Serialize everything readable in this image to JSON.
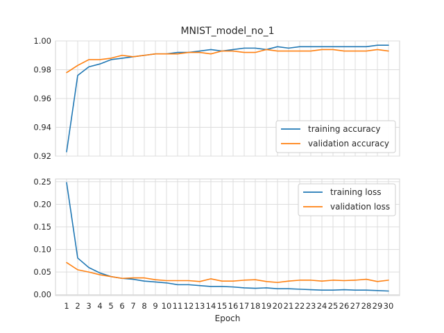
{
  "chart_data": [
    {
      "type": "line",
      "title": "MNIST_model_no_1",
      "xlabel": "",
      "ylabel": "",
      "x": [
        1,
        2,
        3,
        4,
        5,
        6,
        7,
        8,
        9,
        10,
        11,
        12,
        13,
        14,
        15,
        16,
        17,
        18,
        19,
        20,
        21,
        22,
        23,
        24,
        25,
        26,
        27,
        28,
        29,
        30
      ],
      "xlim": [
        0,
        31
      ],
      "ylim": [
        0.92,
        1.0
      ],
      "yticks": [
        "0.92",
        "0.94",
        "0.96",
        "0.98",
        "1.00"
      ],
      "yticks_values": [
        0.92,
        0.94,
        0.96,
        0.98,
        1.0
      ],
      "grid": true,
      "legend_position": "lower-right",
      "series": [
        {
          "name": "training accuracy",
          "color": "#1f77b4",
          "values": [
            0.923,
            0.976,
            0.982,
            0.984,
            0.987,
            0.988,
            0.989,
            0.99,
            0.991,
            0.991,
            0.992,
            0.992,
            0.993,
            0.994,
            0.993,
            0.994,
            0.995,
            0.995,
            0.994,
            0.996,
            0.995,
            0.996,
            0.996,
            0.996,
            0.996,
            0.996,
            0.996,
            0.996,
            0.997,
            0.997
          ]
        },
        {
          "name": "validation accuracy",
          "color": "#ff7f0e",
          "values": [
            0.978,
            0.983,
            0.987,
            0.987,
            0.988,
            0.99,
            0.989,
            0.99,
            0.991,
            0.991,
            0.991,
            0.992,
            0.992,
            0.991,
            0.993,
            0.993,
            0.992,
            0.992,
            0.994,
            0.993,
            0.993,
            0.993,
            0.993,
            0.994,
            0.994,
            0.993,
            0.993,
            0.993,
            0.994,
            0.993
          ]
        }
      ]
    },
    {
      "type": "line",
      "title": "",
      "xlabel": "Epoch",
      "ylabel": "",
      "x": [
        1,
        2,
        3,
        4,
        5,
        6,
        7,
        8,
        9,
        10,
        11,
        12,
        13,
        14,
        15,
        16,
        17,
        18,
        19,
        20,
        21,
        22,
        23,
        24,
        25,
        26,
        27,
        28,
        29,
        30
      ],
      "xticks": [
        "1",
        "2",
        "3",
        "4",
        "5",
        "6",
        "7",
        "8",
        "9",
        "10",
        "11",
        "12",
        "13",
        "14",
        "15",
        "16",
        "17",
        "18",
        "19",
        "20",
        "21",
        "22",
        "23",
        "24",
        "25",
        "26",
        "27",
        "28",
        "29",
        "30"
      ],
      "xlim": [
        0,
        31
      ],
      "ylim": [
        -0.002,
        0.256
      ],
      "yticks": [
        "0.00",
        "0.05",
        "0.10",
        "0.15",
        "0.20",
        "0.25"
      ],
      "yticks_values": [
        0.0,
        0.05,
        0.1,
        0.15,
        0.2,
        0.25
      ],
      "grid": true,
      "legend_position": "upper-right",
      "series": [
        {
          "name": "training loss",
          "color": "#1f77b4",
          "values": [
            0.248,
            0.081,
            0.06,
            0.048,
            0.04,
            0.036,
            0.034,
            0.03,
            0.028,
            0.026,
            0.022,
            0.022,
            0.02,
            0.018,
            0.018,
            0.017,
            0.015,
            0.014,
            0.015,
            0.013,
            0.013,
            0.012,
            0.011,
            0.01,
            0.01,
            0.011,
            0.01,
            0.01,
            0.009,
            0.008
          ]
        },
        {
          "name": "validation loss",
          "color": "#ff7f0e",
          "values": [
            0.071,
            0.055,
            0.05,
            0.044,
            0.04,
            0.036,
            0.037,
            0.037,
            0.033,
            0.031,
            0.031,
            0.031,
            0.029,
            0.035,
            0.03,
            0.03,
            0.032,
            0.033,
            0.029,
            0.027,
            0.03,
            0.032,
            0.032,
            0.03,
            0.032,
            0.031,
            0.032,
            0.034,
            0.029,
            0.032
          ]
        }
      ]
    }
  ]
}
